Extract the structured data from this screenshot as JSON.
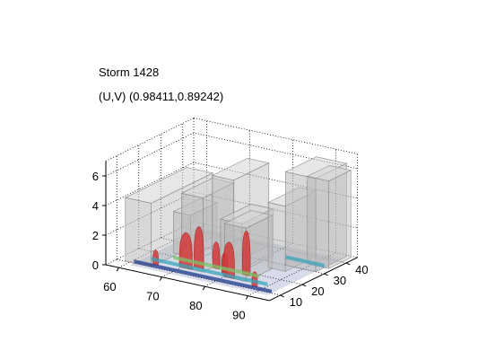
{
  "chart_data": {
    "type": "surface3d",
    "title": "Storm 1428",
    "subtitle": "(U,V) (0.98411,0.89242)",
    "xlabel": "",
    "ylabel": "",
    "zlabel": "",
    "x_ticks": [
      "60",
      "70",
      "80",
      "90"
    ],
    "y_ticks": [
      "10",
      "20",
      "30",
      "40"
    ],
    "z_ticks": [
      "0",
      "2",
      "4",
      "6"
    ],
    "xlim": [
      57,
      95
    ],
    "ylim": [
      5,
      45
    ],
    "zlim": [
      0,
      7
    ],
    "grid": true,
    "colors": {
      "isosurface": "#b8b8b8",
      "isosurface_edge": "#8c8c8c",
      "core": "#d23a3a",
      "base_low": "#1f3a8a",
      "base_mid": "#3aa6b8",
      "base_high": "#7cc46a"
    }
  }
}
